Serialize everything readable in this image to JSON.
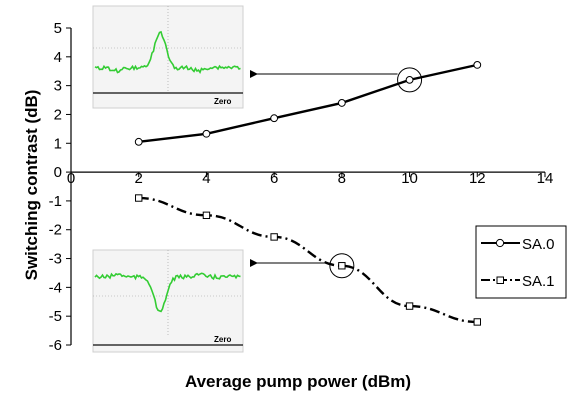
{
  "chart_data": {
    "type": "line",
    "title": "",
    "xlabel": "Average pump power (dBm)",
    "ylabel": "Switching contrast (dB)",
    "xlim": [
      0,
      14
    ],
    "ylim": [
      -6,
      5
    ],
    "x_ticks": [
      0,
      2,
      4,
      6,
      8,
      10,
      12,
      14
    ],
    "y_ticks": [
      5,
      4,
      3,
      2,
      1,
      0,
      -1,
      -2,
      -3,
      -4,
      -5,
      -6
    ],
    "x_tick_labels": [
      "0",
      "2",
      "4",
      "6",
      "8",
      "10",
      "12",
      "14"
    ],
    "y_tick_labels": [
      "5",
      "4",
      "3",
      "2",
      "1",
      "0",
      "-1",
      "-2",
      "-3",
      "-4",
      "-5",
      "-6"
    ],
    "grid": false,
    "legend_position": "right",
    "series": [
      {
        "name": "SA.0",
        "x": [
          2,
          4,
          6,
          8,
          10,
          12
        ],
        "y": [
          1.05,
          1.33,
          1.87,
          2.4,
          3.2,
          3.72
        ],
        "line_style": "solid",
        "marker": "circle",
        "color": "#000000"
      },
      {
        "name": "SA.1",
        "x": [
          2,
          4,
          6,
          8,
          10,
          12
        ],
        "y": [
          -0.9,
          -1.5,
          -2.25,
          -3.25,
          -4.65,
          -5.2
        ],
        "line_style": "dash-dot",
        "marker": "square",
        "color": "#000000"
      }
    ],
    "annotations": [
      {
        "type": "circle-with-arrow",
        "target_x": 10,
        "target_y": 3.2,
        "points_to": "inset_top"
      },
      {
        "type": "circle-with-arrow",
        "target_x": 8,
        "target_y": -3.25,
        "points_to": "inset_bottom"
      }
    ],
    "insets": [
      {
        "id": "inset_top",
        "label": "Zero",
        "trace_color": "#33cc33",
        "shape": "peak"
      },
      {
        "id": "inset_bottom",
        "label": "Zero",
        "trace_color": "#33cc33",
        "shape": "dip"
      }
    ]
  }
}
